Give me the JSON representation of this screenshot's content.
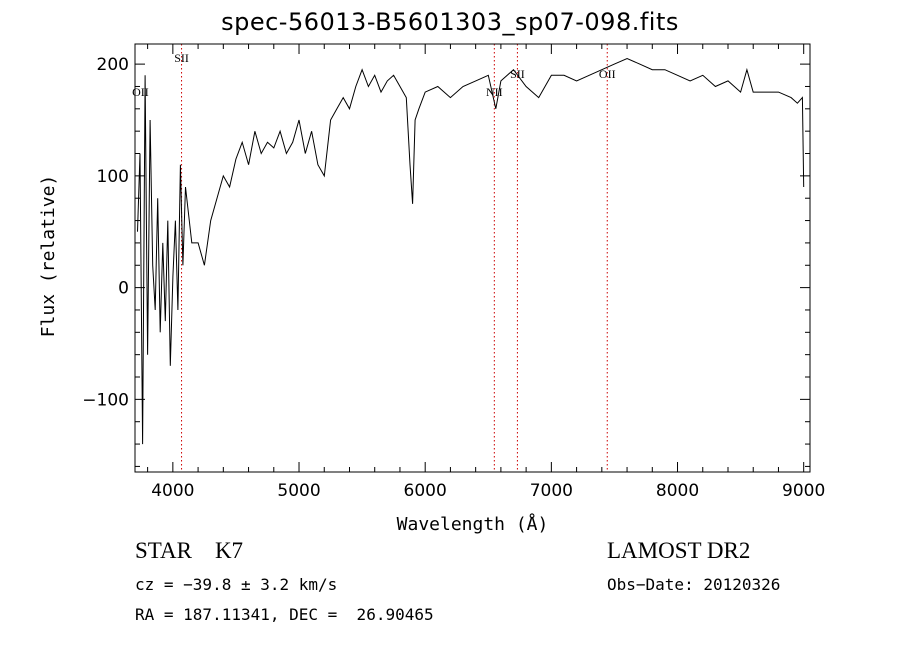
{
  "chart_data": {
    "type": "line",
    "title": "spec-56013-B5601303_sp07-098.fits",
    "xlabel": "Wavelength (Å)",
    "ylabel": "Flux (relative)",
    "xlim": [
      3700,
      9050
    ],
    "ylim": [
      -165,
      218
    ],
    "xticks": [
      4000,
      5000,
      6000,
      7000,
      8000,
      9000
    ],
    "yticks": [
      -100,
      0,
      100,
      200
    ],
    "series": [
      {
        "x": [
          3720,
          3740,
          3760,
          3780,
          3800,
          3820,
          3840,
          3860,
          3880,
          3900,
          3920,
          3940,
          3960,
          3980,
          4000,
          4020,
          4040,
          4060,
          4080,
          4100,
          4150,
          4200,
          4250,
          4300,
          4350,
          4400,
          4450,
          4500,
          4550,
          4600,
          4650,
          4700,
          4750,
          4800,
          4850,
          4900,
          4950,
          5000,
          5050,
          5100,
          5150,
          5200,
          5250,
          5300,
          5350,
          5400,
          5450,
          5500,
          5550,
          5600,
          5650,
          5700,
          5750,
          5800,
          5850,
          5880,
          5900,
          5920,
          5950,
          6000,
          6100,
          6200,
          6300,
          6400,
          6500,
          6560,
          6600,
          6700,
          6800,
          6900,
          7000,
          7100,
          7200,
          7300,
          7400,
          7500,
          7600,
          7700,
          7800,
          7900,
          8000,
          8100,
          8200,
          8300,
          8400,
          8500,
          8550,
          8600,
          8700,
          8800,
          8900,
          8950,
          8990,
          9000
        ],
        "y": [
          50,
          120,
          -140,
          190,
          -60,
          150,
          20,
          -20,
          80,
          -40,
          40,
          -30,
          60,
          -70,
          10,
          60,
          -20,
          110,
          20,
          90,
          40,
          40,
          20,
          60,
          80,
          100,
          90,
          115,
          130,
          110,
          140,
          120,
          130,
          125,
          140,
          120,
          130,
          150,
          120,
          140,
          110,
          100,
          150,
          160,
          170,
          160,
          180,
          195,
          180,
          190,
          175,
          185,
          190,
          180,
          170,
          110,
          75,
          150,
          160,
          175,
          180,
          170,
          180,
          185,
          190,
          160,
          185,
          195,
          180,
          170,
          190,
          190,
          185,
          190,
          195,
          200,
          205,
          200,
          195,
          195,
          190,
          185,
          190,
          180,
          185,
          175,
          195,
          175,
          175,
          175,
          170,
          165,
          170,
          90
        ]
      }
    ],
    "lines": [
      {
        "x": 4069,
        "label": "SII"
      },
      {
        "x": 6548,
        "label": "NII"
      },
      {
        "x": 6731,
        "label": "SII"
      },
      {
        "x": 7443,
        "label": "OII"
      }
    ],
    "extra_labels": [
      {
        "x": 3727,
        "label": "OII"
      }
    ],
    "grid": false,
    "legend": "none"
  },
  "info": {
    "class_line": "STAR    K7",
    "survey": "LAMOST DR2",
    "cz_line": "cz = −39.8 ± 3.2 km/s",
    "obs_date": "Obs−Date: 20120326",
    "radec": "RA = 187.11341, DEC =  26.90465"
  },
  "colors": {
    "axes": "#000000",
    "spectrum": "#000000",
    "lines": "#cc0000"
  }
}
